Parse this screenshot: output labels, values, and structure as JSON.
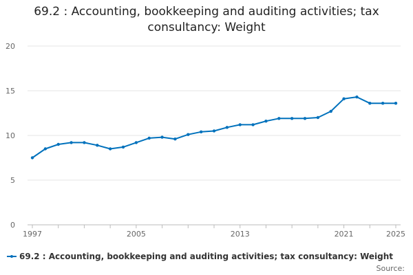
{
  "chart_data": {
    "type": "line",
    "title": "69.2 : Accounting, bookkeeping and auditing activities; tax consultancy: Weight",
    "xlabel": "",
    "ylabel": "",
    "xlim": [
      1997,
      2025
    ],
    "ylim": [
      0,
      20
    ],
    "grid": true,
    "legend_position": "bottom-left",
    "x_ticks": [
      "1997",
      "2005",
      "2013",
      "2021",
      "2025"
    ],
    "y_ticks": [
      "0",
      "5",
      "10",
      "15",
      "20"
    ],
    "series": [
      {
        "name": "69.2 : Accounting, bookkeeping and auditing activities; tax consultancy: Weight",
        "color": "#0071bc",
        "x": [
          1997,
          1998,
          1999,
          2000,
          2001,
          2002,
          2003,
          2004,
          2005,
          2006,
          2007,
          2008,
          2009,
          2010,
          2011,
          2012,
          2013,
          2014,
          2015,
          2016,
          2017,
          2018,
          2019,
          2020,
          2021,
          2022,
          2023,
          2024,
          2025
        ],
        "values": [
          7.5,
          8.5,
          9.0,
          9.2,
          9.2,
          8.9,
          8.5,
          8.7,
          9.2,
          9.7,
          9.8,
          9.6,
          10.1,
          10.4,
          10.5,
          10.9,
          11.2,
          11.2,
          11.6,
          11.9,
          11.9,
          11.9,
          12.0,
          12.7,
          14.1,
          14.3,
          13.6,
          13.6,
          13.6
        ]
      }
    ]
  },
  "legend": {
    "label": "69.2 : Accounting, bookkeeping and auditing activities; tax consultancy: Weight"
  },
  "source": {
    "label": "Source:"
  }
}
